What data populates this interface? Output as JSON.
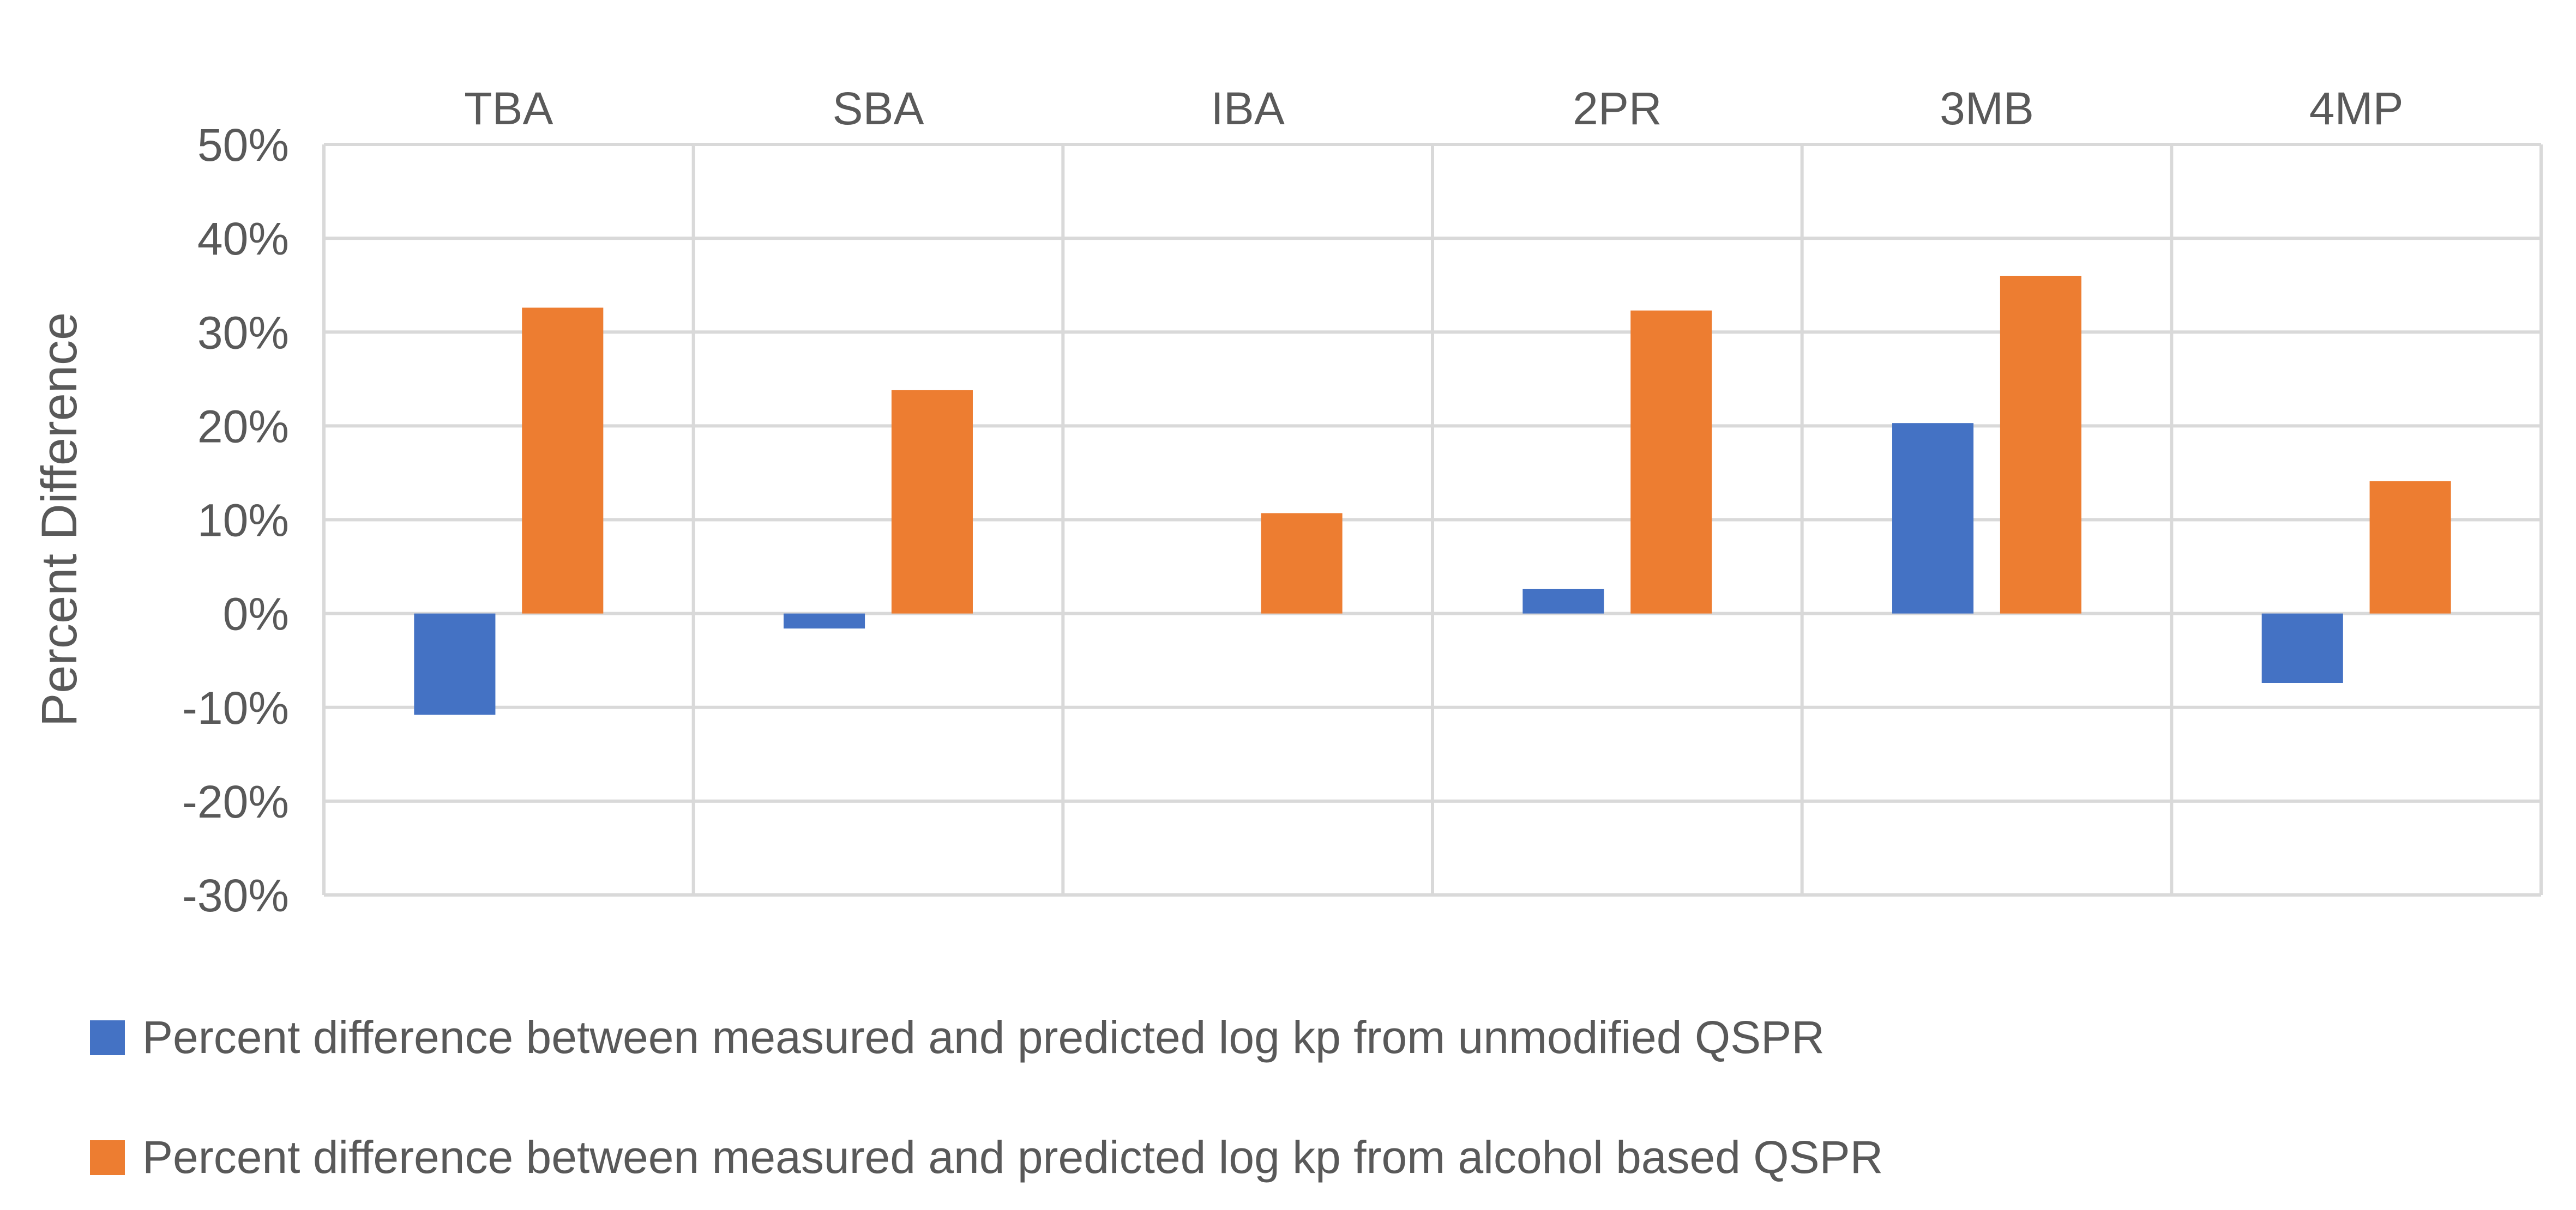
{
  "chart_data": {
    "type": "bar",
    "title": "",
    "xlabel": "",
    "ylabel": "Percent Difference",
    "categories": [
      "TBA",
      "SBA",
      "IBA",
      "2PR",
      "3MB",
      "4MP"
    ],
    "category_axis_position": "top",
    "ylim": [
      -30,
      50
    ],
    "yticks": [
      50,
      40,
      30,
      20,
      10,
      0,
      -10,
      -20,
      -30
    ],
    "ytick_labels": [
      "50%",
      "40%",
      "30%",
      "20%",
      "10%",
      "0%",
      "-10%",
      "-20%",
      "-30%"
    ],
    "grid": true,
    "legend_position": "bottom",
    "series": [
      {
        "name": "Percent difference between measured and predicted log kp from unmodified QSPR",
        "color": "#4472C4",
        "values": [
          -10.8,
          -1.6,
          0,
          2.6,
          20.3,
          -7.4
        ]
      },
      {
        "name": "Percent difference between measured and predicted log kp from alcohol based QSPR",
        "color": "#ED7D31",
        "values": [
          32.6,
          23.8,
          10.7,
          32.3,
          36.0,
          14.1
        ]
      }
    ]
  }
}
